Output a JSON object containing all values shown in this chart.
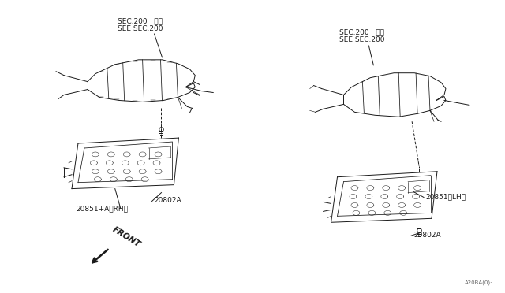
{
  "bg_color": "#ffffff",
  "line_color": "#1a1a1a",
  "fig_width": 6.4,
  "fig_height": 3.72,
  "dpi": 100,
  "labels": {
    "sec200_left_line1": "SEC.200   参照",
    "sec200_left_line2": "SEE SEC.200",
    "sec200_right_line1": "SEC.200   参照",
    "sec200_right_line2": "SEE SEC.200",
    "part_rh": "20851+A（RH）",
    "part_bolt_left": "20802A",
    "part_lh": "20851（LH）",
    "part_bolt_right": "20802A",
    "front_label": "FRONT",
    "diagram_code": "A20BA(0)·"
  },
  "colors": {
    "drawing": "#1a1a1a",
    "text": "#000000",
    "bg": "#ffffff"
  }
}
